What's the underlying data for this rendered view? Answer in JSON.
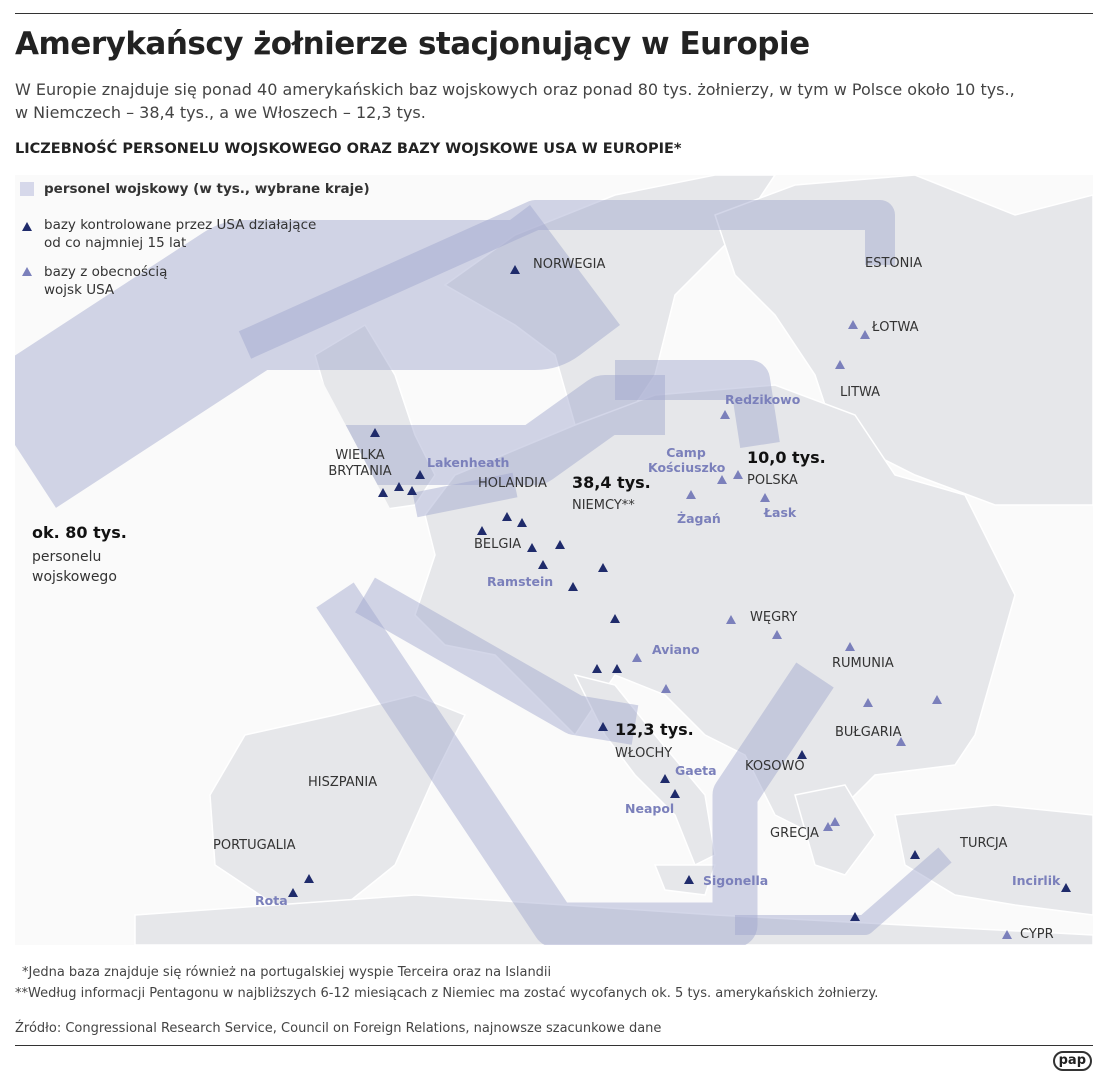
{
  "header": {
    "title": "Amerykańscy żołnierze stacjonujący w Europie",
    "subtitle": "W Europie znajduje się ponad 40 amerykańskich baz wojskowych oraz ponad 80 tys. żołnierzy, w tym w Polsce około 10 tys., w Niemczech – 38,4 tys., a we Włoszech – 12,3 tys."
  },
  "section_title": "LICZEBNOŚĆ PERSONELU WOJSKOWEGO ORAZ BAZY WOJSKOWE USA W EUROPIE*",
  "legend": [
    {
      "label": "personel wojskowy (w tys., wybrane kraje)"
    },
    {
      "label": "bazy kontrolowane przez USA działające od co najmniej 15 lat"
    },
    {
      "label": "bazy z obecnością wojsk USA"
    }
  ],
  "map": {
    "countries": [
      "NORWEGIA",
      "ESTONIA",
      "ŁOTWA",
      "LITWA",
      "WIELKA BRYTANIA",
      "HOLANDIA",
      "BELGIA",
      "NIEMCY**",
      "POLSKA",
      "WĘGRY",
      "RUMUNIA",
      "BUŁGARIA",
      "KOSOWO",
      "WŁOCHY",
      "HISZPANIA",
      "PORTUGALIA",
      "GRECJA",
      "TURCJA",
      "CYPR"
    ],
    "bases": [
      "Lakenheath",
      "Redzikowo",
      "Camp Kościuszko",
      "Żagań",
      "Łask",
      "Ramstein",
      "Aviano",
      "Gaeta",
      "Neapol",
      "Sigonella",
      "Rota",
      "Incirlik"
    ],
    "figures": [
      {
        "value": "ok. 80 tys.",
        "caption": "personelu wojskowego"
      },
      {
        "value": "38,4 tys."
      },
      {
        "value": "10,0 tys."
      },
      {
        "value": "12,3 tys."
      }
    ]
  },
  "footnotes": [
    "*Jedna baza znajduje się również na portugalskiej wyspie Terceira oraz na Islandii",
    "**Według informacji Pentagonu w najbliższych 6-12 miesiącach z Niemiec ma zostać wycofanych ok. 5 tys. amerykańskich żołnierzy."
  ],
  "source": "Źródło: Congressional Research Service, Council on Foreign Relations, najnowsze szacunkowe dane",
  "logo": "pap"
}
